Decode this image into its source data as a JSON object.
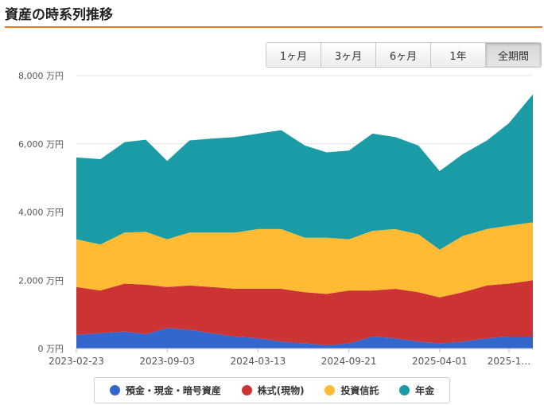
{
  "title": "資産の時系列推移",
  "range_buttons": [
    "1ヶ月",
    "3ヶ月",
    "6ヶ月",
    "1年",
    "全期間"
  ],
  "active_range": "全期間",
  "colors": {
    "deposits": "#3366cc",
    "stocks": "#cc3333",
    "funds": "#ffbb33",
    "pension": "#1a9ba6",
    "accent": "#e07a1f"
  },
  "legend": [
    {
      "label": "預金・現金・暗号資産",
      "color": "#3366cc"
    },
    {
      "label": "株式(現物)",
      "color": "#cc3333"
    },
    {
      "label": "投資信託",
      "color": "#ffbb33"
    },
    {
      "label": "年金",
      "color": "#1a9ba6"
    }
  ],
  "chart_data": {
    "type": "area",
    "stacked": true,
    "x": [
      "2023-02-23",
      "2023-04-15",
      "2023-06-05",
      "2023-07-20",
      "2023-09-03",
      "2023-10-20",
      "2023-12-05",
      "2024-01-25",
      "2024-03-13",
      "2024-05-01",
      "2024-06-20",
      "2024-08-05",
      "2024-09-21",
      "2024-11-10",
      "2024-12-28",
      "2025-02-15",
      "2025-04-01",
      "2025-05-20",
      "2025-07-10",
      "2025-08-25",
      "2025-10-15"
    ],
    "x_tick_labels": [
      "2023-02-23",
      "2023-09-03",
      "2024-03-13",
      "2024-09-21",
      "2025-04-01",
      "2025-1…"
    ],
    "ylim": [
      0,
      8000
    ],
    "y_ticks": [
      0,
      2000,
      4000,
      6000,
      8000
    ],
    "y_tick_labels": [
      "0 万円",
      "2,000 万円",
      "4,000 万円",
      "6,000 万円",
      "8,000 万円"
    ],
    "series": [
      {
        "name": "預金・現金・暗号資産",
        "values": [
          400,
          450,
          500,
          420,
          600,
          550,
          450,
          350,
          300,
          200,
          150,
          100,
          150,
          350,
          300,
          200,
          150,
          200,
          300,
          350,
          350
        ]
      },
      {
        "name": "株式(現物)",
        "values": [
          1400,
          1250,
          1400,
          1450,
          1200,
          1300,
          1350,
          1400,
          1450,
          1550,
          1500,
          1500,
          1550,
          1350,
          1450,
          1450,
          1350,
          1450,
          1550,
          1550,
          1650
        ]
      },
      {
        "name": "投資信託",
        "values": [
          1400,
          1350,
          1500,
          1550,
          1400,
          1550,
          1600,
          1650,
          1750,
          1750,
          1600,
          1650,
          1500,
          1750,
          1750,
          1700,
          1400,
          1650,
          1650,
          1700,
          1700
        ]
      },
      {
        "name": "年金",
        "values": [
          2400,
          2500,
          2650,
          2700,
          2300,
          2700,
          2750,
          2800,
          2800,
          2900,
          2700,
          2500,
          2600,
          2850,
          2700,
          2600,
          2300,
          2400,
          2600,
          3000,
          3750
        ]
      }
    ],
    "grid": true,
    "legend_position": "bottom"
  }
}
